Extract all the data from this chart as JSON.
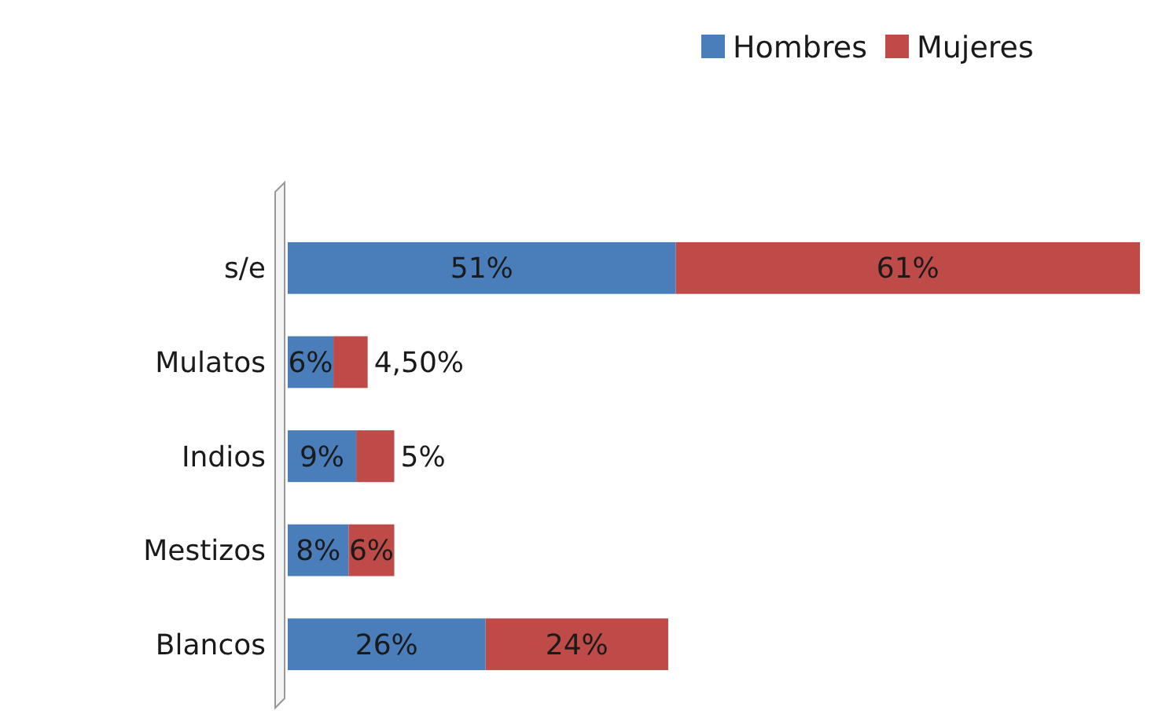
{
  "chart_data": {
    "type": "bar",
    "orientation": "horizontal",
    "stacked": true,
    "legend": "top right",
    "categories": [
      "s/e",
      "Mulatos",
      "Indios",
      "Mestizos",
      "Blancos"
    ],
    "series": [
      {
        "name": "Hombres",
        "color": "#4a7ebb",
        "values": [
          51,
          6,
          9,
          8,
          26
        ],
        "value_labels": [
          "51%",
          "6%",
          "9%",
          "8%",
          "26%"
        ]
      },
      {
        "name": "Mujeres",
        "color": "#be4b48",
        "values": [
          61,
          4.5,
          5,
          6,
          24
        ],
        "value_labels": [
          "61%",
          "4,50%",
          "5%",
          "6%",
          "24%"
        ]
      }
    ]
  }
}
